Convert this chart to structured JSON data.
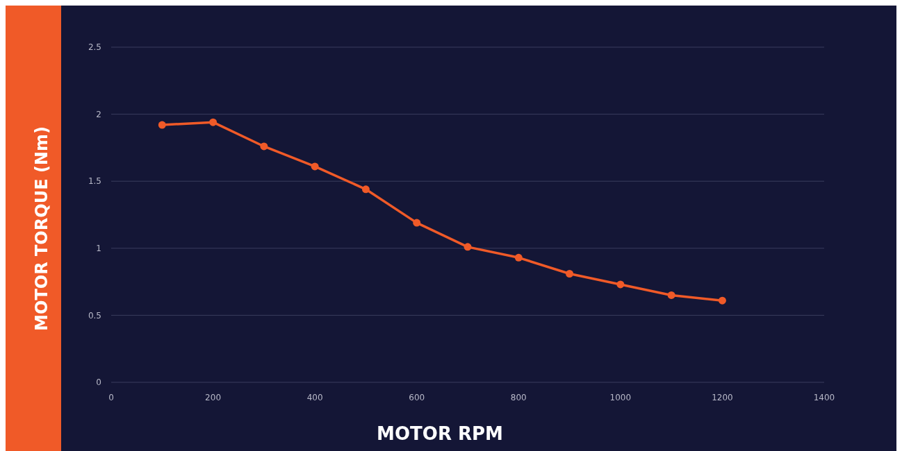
{
  "chart_data": {
    "type": "line",
    "xlabel": "MOTOR RPM",
    "ylabel": "MOTOR TORQUE (Nm)",
    "x": [
      100,
      200,
      300,
      400,
      500,
      600,
      700,
      800,
      900,
      1000,
      1100,
      1200
    ],
    "series": [
      {
        "color": "#f05a28",
        "values": [
          1.92,
          1.94,
          1.76,
          1.61,
          1.44,
          1.19,
          1.01,
          0.93,
          0.81,
          0.73,
          0.65,
          0.61
        ]
      }
    ],
    "xlim": [
      0,
      1400
    ],
    "xticks": [
      0,
      200,
      400,
      600,
      800,
      1000,
      1200,
      1400
    ],
    "ylim": [
      0,
      2.5
    ],
    "yticks": [
      0,
      0.5,
      1,
      1.5,
      2,
      2.5
    ],
    "grid": "y",
    "marker": "circle",
    "line_style": "solid"
  }
}
